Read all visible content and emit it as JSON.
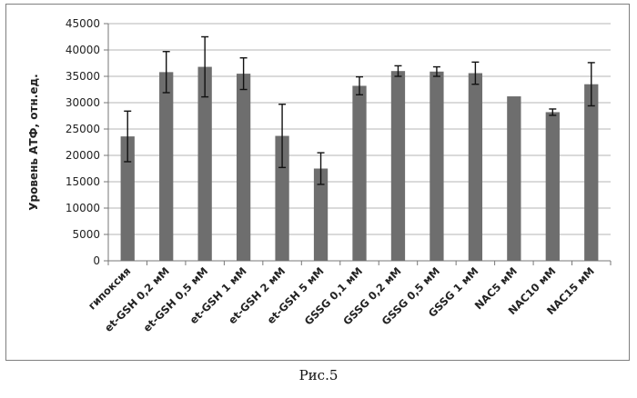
{
  "chart_data": {
    "type": "bar",
    "title": "",
    "xlabel": "",
    "ylabel": "Уровень АТФ, отн.ед.",
    "ylim": [
      0,
      45000
    ],
    "yticks": [
      0,
      5000,
      10000,
      15000,
      20000,
      25000,
      30000,
      35000,
      40000,
      45000
    ],
    "grid": true,
    "legend": "none",
    "bar_color": "#6e6e6e",
    "categories": [
      "гипоксия",
      "et-GSH 0,2 мМ",
      "et-GSH 0,5 мМ",
      "et-GSH 1 мМ",
      "et-GSH 2 мМ",
      "et-GSH 5 мМ",
      "GSSG 0,1 мМ",
      "GSSG 0,2 мМ",
      "GSSG 0,5 мМ",
      "GSSG 1 мМ",
      "NAC5 мМ",
      "NAC10 мМ",
      "NAC15 мМ"
    ],
    "series": [
      {
        "values": [
          23600,
          35800,
          36800,
          35500,
          23700,
          17500,
          33200,
          36000,
          35900,
          35600,
          31200,
          28200,
          33500
        ],
        "errors": [
          4800,
          3900,
          5700,
          3000,
          6000,
          3000,
          1700,
          1000,
          900,
          2100,
          0,
          600,
          4100
        ]
      }
    ]
  },
  "caption": "Рис.5"
}
